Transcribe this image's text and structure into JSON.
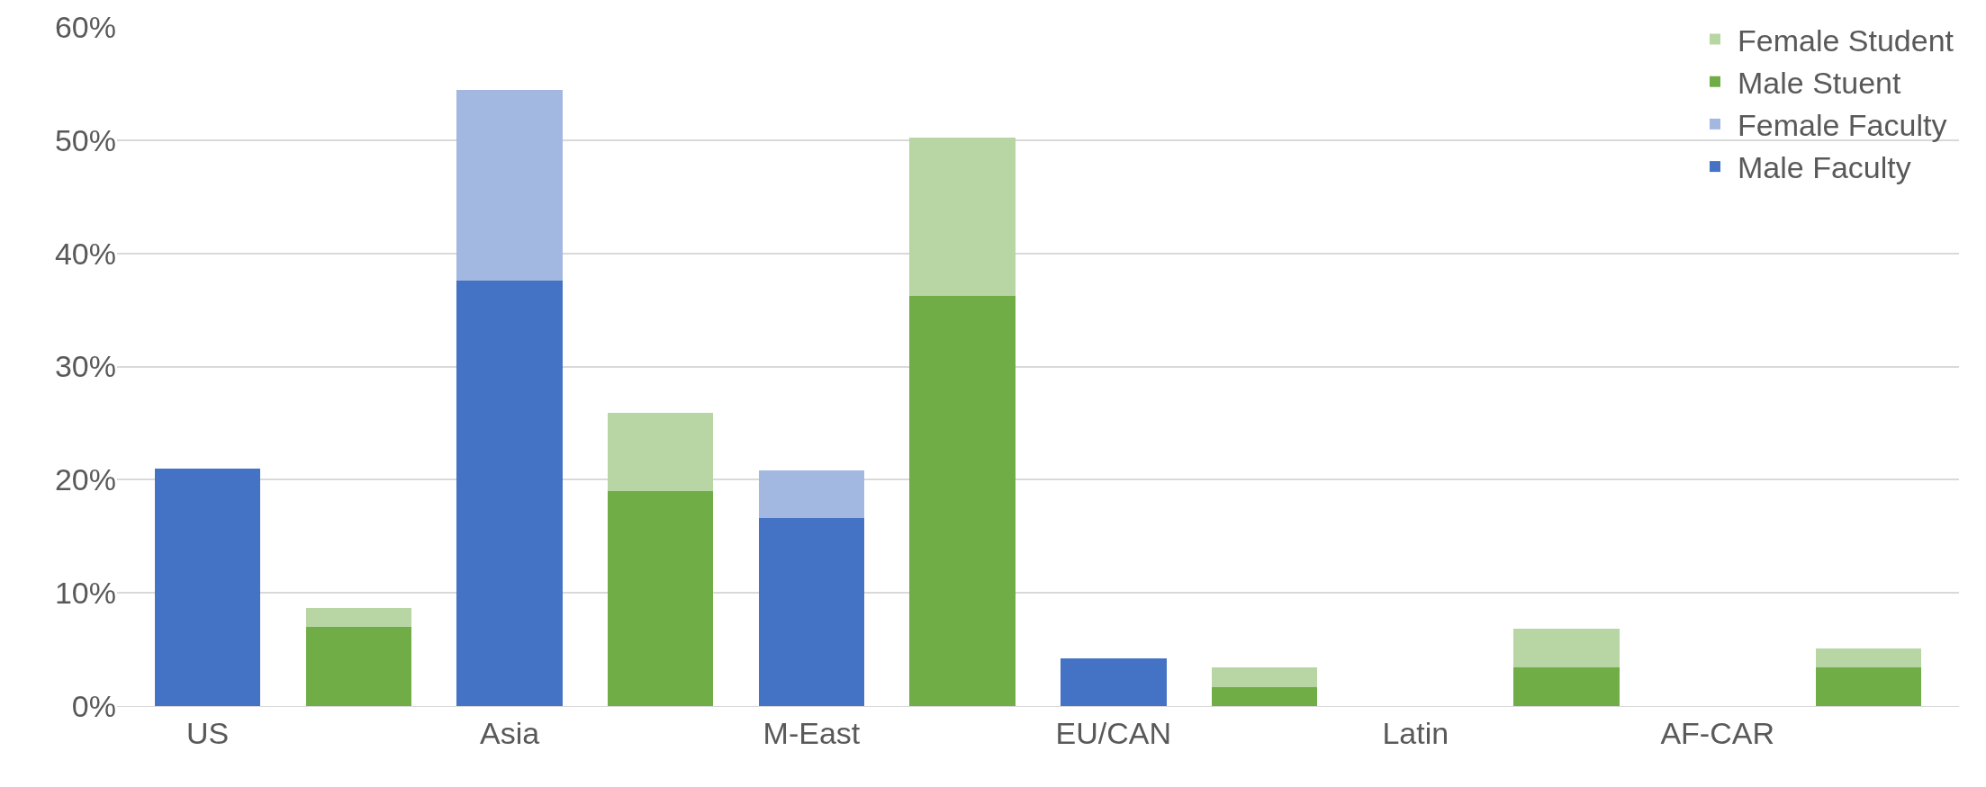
{
  "chart_data": {
    "type": "bar",
    "stacked": true,
    "categories": [
      "US",
      null,
      "Asia",
      null,
      "M-East",
      null,
      "EU/CAN",
      null,
      "Latin",
      null,
      "AF-CAR",
      null
    ],
    "series": [
      {
        "name": "Male Faculty",
        "color": "#4472c4",
        "values": [
          21,
          null,
          37.6,
          null,
          16.6,
          null,
          4.2,
          null,
          null,
          null,
          null,
          null
        ]
      },
      {
        "name": "Female Faculty",
        "color": "#a2b8e1",
        "values": [
          null,
          null,
          16.8,
          null,
          4.2,
          null,
          null,
          null,
          null,
          null,
          null,
          null
        ]
      },
      {
        "name": "Male Stuent",
        "color": "#70ad47",
        "values": [
          null,
          7,
          null,
          19,
          null,
          36.2,
          null,
          1.7,
          null,
          3.4,
          null,
          3.4
        ]
      },
      {
        "name": "Female Student",
        "color": "#b7d6a3",
        "values": [
          null,
          1.7,
          null,
          6.9,
          null,
          14,
          null,
          1.7,
          null,
          3.4,
          null,
          1.7
        ]
      }
    ],
    "ylim": [
      0,
      60
    ],
    "yticks": [
      {
        "value": 0,
        "label": "0%"
      },
      {
        "value": 10,
        "label": "10%"
      },
      {
        "value": 20,
        "label": "20%"
      },
      {
        "value": 30,
        "label": "30%"
      },
      {
        "value": 40,
        "label": "40%"
      },
      {
        "value": 50,
        "label": "50%"
      },
      {
        "value": 60,
        "label": "60%"
      }
    ],
    "grid": "y",
    "legend": "top right"
  }
}
